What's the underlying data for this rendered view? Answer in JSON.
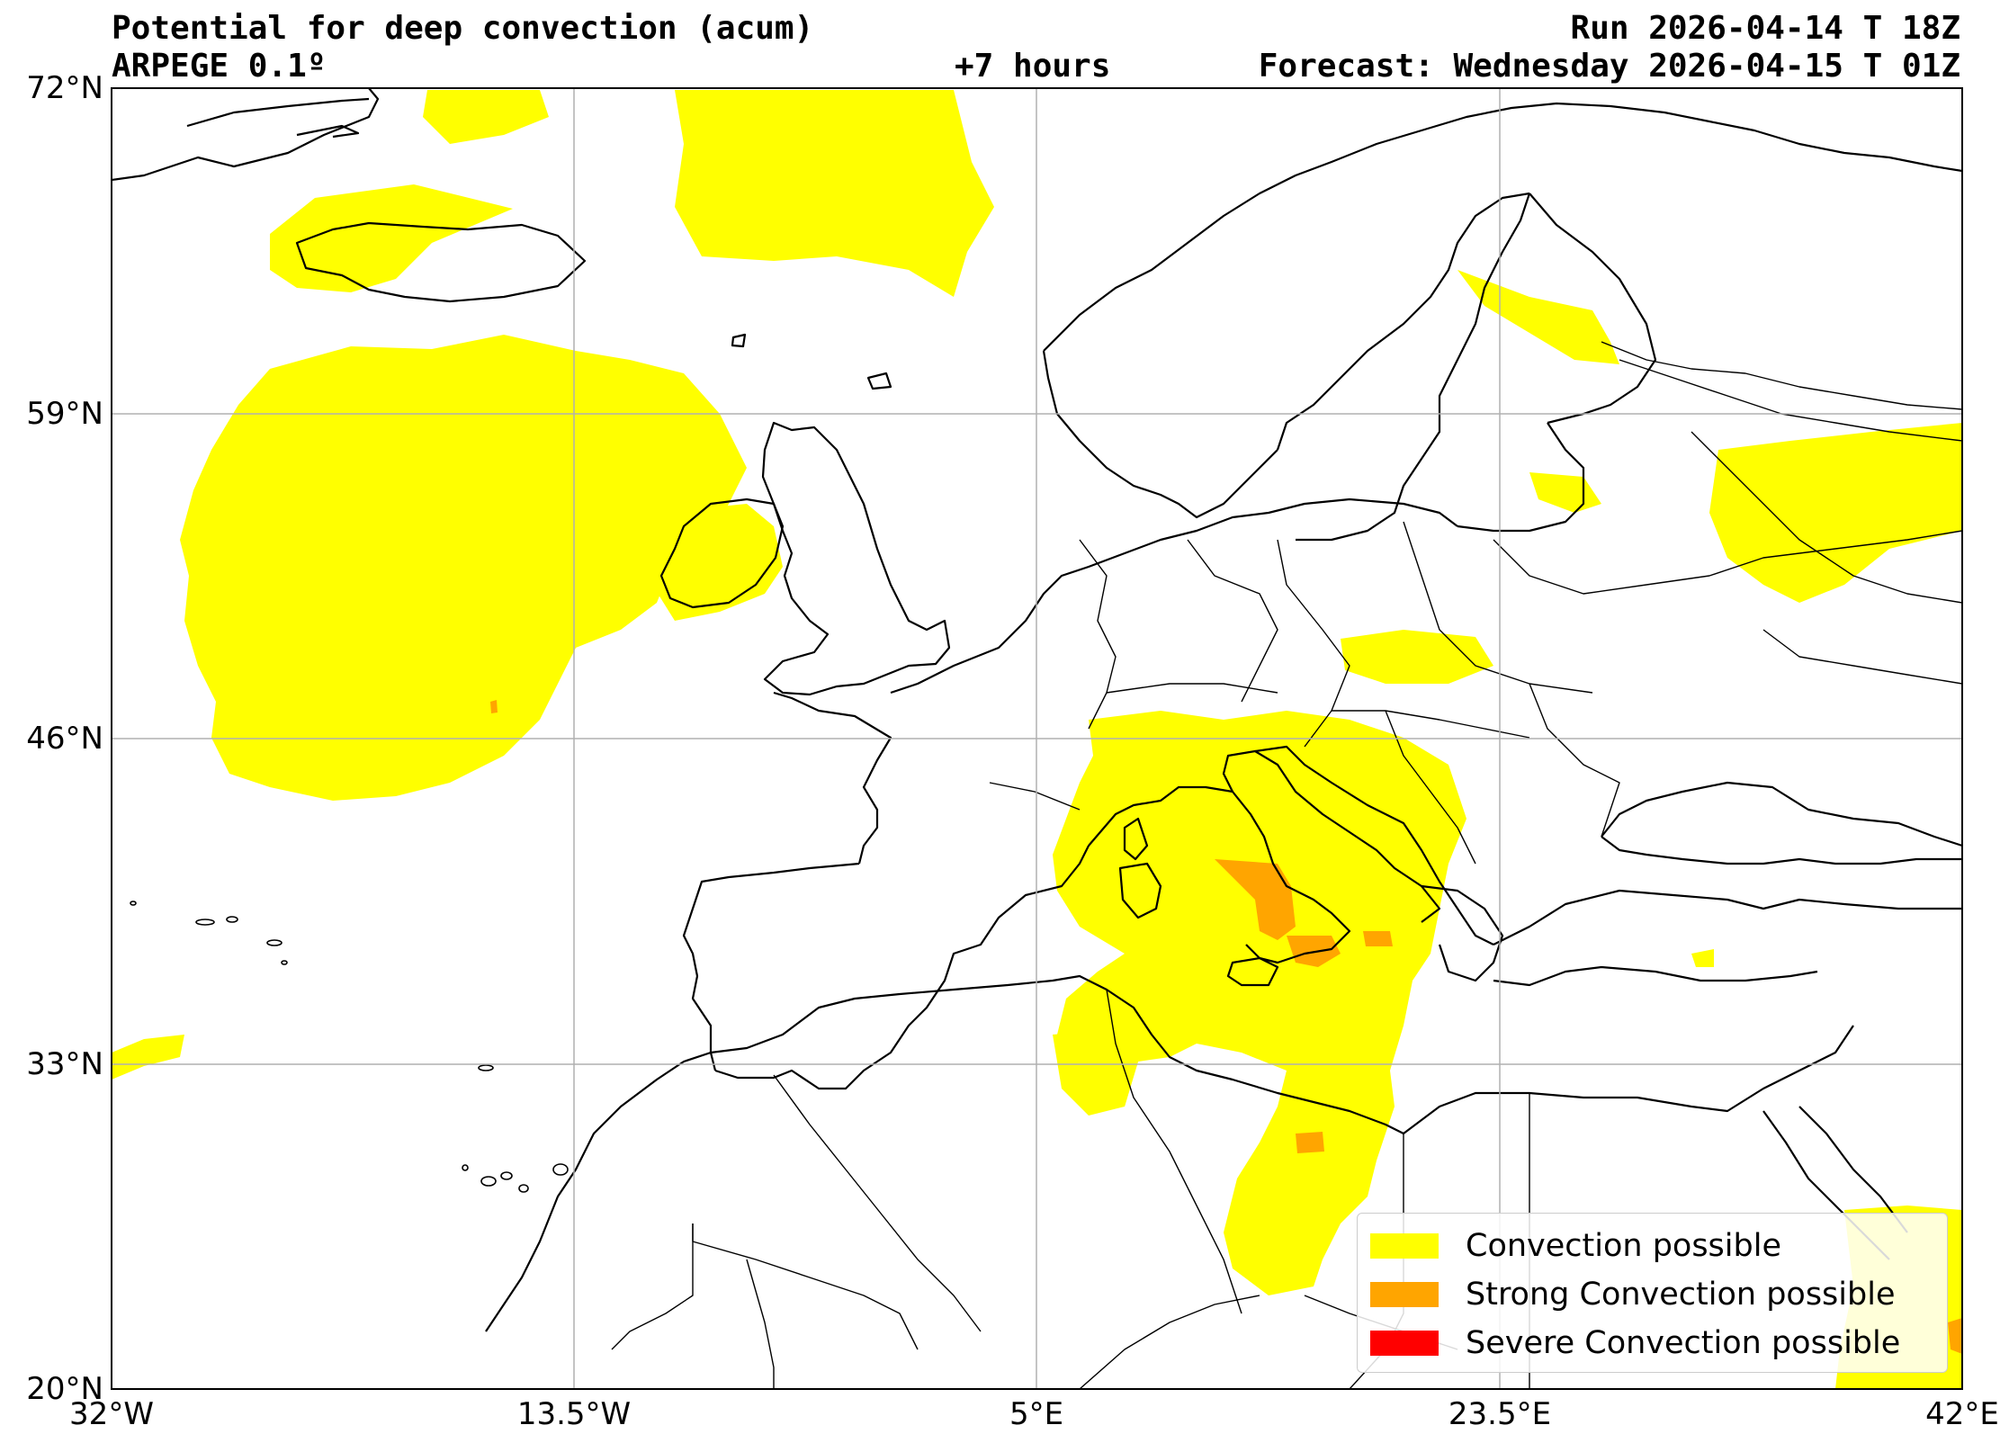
{
  "header": {
    "title": "Potential for deep convection (acum)",
    "model": "ARPEGE 0.1º",
    "run": "Run 2026-04-14 T 18Z",
    "lead": "+7 hours",
    "forecast": "Forecast: Wednesday 2026-04-15 T 01Z"
  },
  "axes": {
    "x_ticks": [
      "32°W",
      "13.5°W",
      "5°E",
      "23.5°E",
      "42°E"
    ],
    "y_ticks": [
      "72°N",
      "59°N",
      "46°N",
      "33°N",
      "20°N"
    ],
    "lon_range": [
      -32,
      42
    ],
    "lat_range": [
      20,
      72
    ],
    "grid": true
  },
  "legend": {
    "placement": "lower-right",
    "items": [
      {
        "label": "Convection possible",
        "color": "#ffff00"
      },
      {
        "label": "Strong Convection possible",
        "color": "#ffa500"
      },
      {
        "label": "Severe Convection possible",
        "color": "#ff0000"
      }
    ]
  },
  "colors": {
    "convection": "#ffff00",
    "strong": "#ffa500",
    "severe": "#ff0000",
    "coastline": "#000000",
    "grid": "#b0b0b0"
  }
}
